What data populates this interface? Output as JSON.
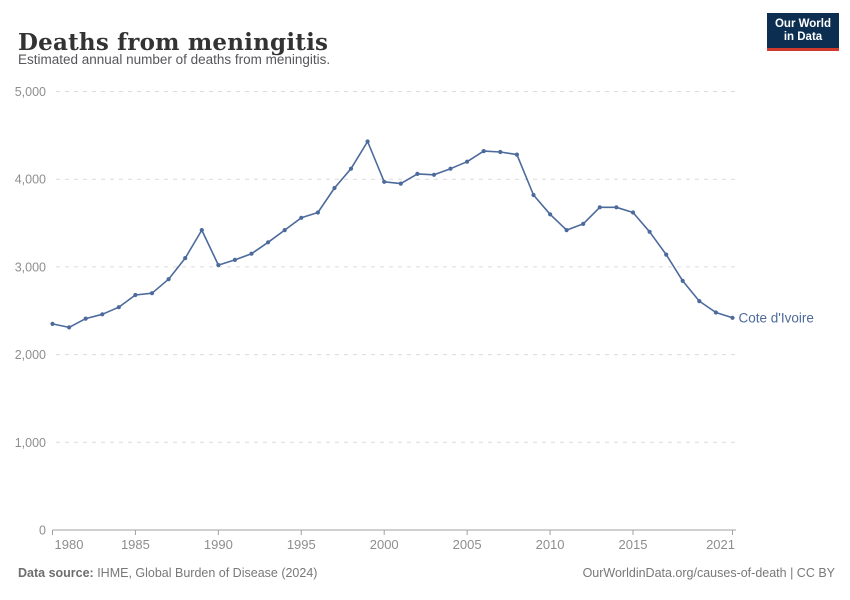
{
  "header": {
    "title": "Deaths from meningitis",
    "subtitle": "Estimated annual number of deaths from meningitis.",
    "logo": {
      "line1": "Our World",
      "line2": "in Data"
    }
  },
  "chart_data": {
    "type": "line",
    "title": "Deaths from meningitis",
    "subtitle": "Estimated annual number of deaths from meningitis.",
    "xlabel": "",
    "ylabel": "",
    "x": [
      1980,
      1981,
      1982,
      1983,
      1984,
      1985,
      1986,
      1987,
      1988,
      1989,
      1990,
      1991,
      1992,
      1993,
      1994,
      1995,
      1996,
      1997,
      1998,
      1999,
      2000,
      2001,
      2002,
      2003,
      2004,
      2005,
      2006,
      2007,
      2008,
      2009,
      2010,
      2011,
      2012,
      2013,
      2014,
      2015,
      2016,
      2017,
      2018,
      2019,
      2020,
      2021
    ],
    "series": [
      {
        "name": "Cote d'Ivoire",
        "color": "#4c6a9c",
        "values": [
          2350,
          2310,
          2410,
          2460,
          2540,
          2680,
          2700,
          2860,
          3100,
          3420,
          3020,
          3080,
          3150,
          3280,
          3420,
          3560,
          3620,
          3900,
          4120,
          4430,
          3970,
          3950,
          4060,
          4050,
          4120,
          4200,
          4320,
          4310,
          4280,
          3820,
          3600,
          3420,
          3490,
          3680,
          3680,
          3620,
          3400,
          3140,
          2840,
          2610,
          2480,
          2420
        ]
      }
    ],
    "xlim": [
      1980,
      2021
    ],
    "ylim": [
      0,
      5000
    ],
    "yticks": [
      0,
      1000,
      2000,
      3000,
      4000,
      5000
    ],
    "ytick_labels": [
      "0",
      "1,000",
      "2,000",
      "3,000",
      "4,000",
      "5,000"
    ],
    "xticks": [
      1980,
      1985,
      1990,
      1995,
      2000,
      2005,
      2010,
      2015,
      2021
    ],
    "grid": "horizontal-dashed",
    "legend_position": "line-end-label",
    "end_label": "Cote d'Ivoire"
  },
  "colors": {
    "line": "#4c6a9c",
    "grid": "#dcdcdc",
    "axis": "#a0a0a0",
    "tick_text": "#8e8e8e",
    "logo_bg": "#0c2e51",
    "logo_accent": "#cf3a2c"
  },
  "footer": {
    "source_label": "Data source:",
    "source_text": " IHME, Global Burden of Disease (2024)",
    "credit": "OurWorldinData.org/causes-of-death | CC BY"
  }
}
